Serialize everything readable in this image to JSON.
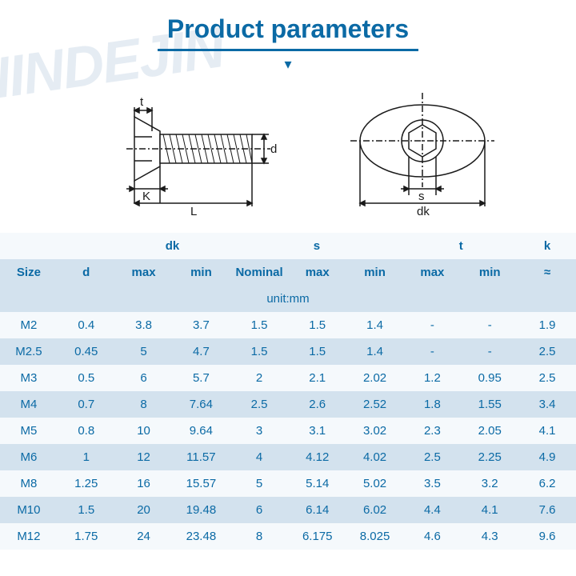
{
  "title": "Product parameters",
  "watermark": "NINDEJIN",
  "unit_label": "unit:mm",
  "diagram": {
    "labels": {
      "t": "t",
      "d": "d",
      "K": "K",
      "L": "L",
      "s": "s",
      "dk": "dk"
    },
    "stroke": "#1a1a1a"
  },
  "table": {
    "group_headers": [
      "",
      "",
      "dk",
      "s",
      "t",
      "k"
    ],
    "sub_headers": [
      "Size",
      "d",
      "max",
      "min",
      "Nominal",
      "max",
      "min",
      "max",
      "min",
      "≈"
    ],
    "rows": [
      [
        "M2",
        "0.4",
        "3.8",
        "3.7",
        "1.5",
        "1.5",
        "1.4",
        "-",
        "-",
        "1.9"
      ],
      [
        "M2.5",
        "0.45",
        "5",
        "4.7",
        "1.5",
        "1.5",
        "1.4",
        "-",
        "-",
        "2.5"
      ],
      [
        "M3",
        "0.5",
        "6",
        "5.7",
        "2",
        "2.1",
        "2.02",
        "1.2",
        "0.95",
        "2.5"
      ],
      [
        "M4",
        "0.7",
        "8",
        "7.64",
        "2.5",
        "2.6",
        "2.52",
        "1.8",
        "1.55",
        "3.4"
      ],
      [
        "M5",
        "0.8",
        "10",
        "9.64",
        "3",
        "3.1",
        "3.02",
        "2.3",
        "2.05",
        "4.1"
      ],
      [
        "M6",
        "1",
        "12",
        "11.57",
        "4",
        "4.12",
        "4.02",
        "2.5",
        "2.25",
        "4.9"
      ],
      [
        "M8",
        "1.25",
        "16",
        "15.57",
        "5",
        "5.14",
        "5.02",
        "3.5",
        "3.2",
        "6.2"
      ],
      [
        "M10",
        "1.5",
        "20",
        "19.48",
        "6",
        "6.14",
        "6.02",
        "4.4",
        "4.1",
        "7.6"
      ],
      [
        "M12",
        "1.75",
        "24",
        "23.48",
        "8",
        "6.175",
        "8.025",
        "4.6",
        "4.3",
        "9.6"
      ]
    ]
  },
  "colors": {
    "accent": "#0b6aa5",
    "row_blue": "#d3e2ee",
    "row_white": "#f5f9fc",
    "watermark": "rgba(180,200,220,0.35)"
  }
}
